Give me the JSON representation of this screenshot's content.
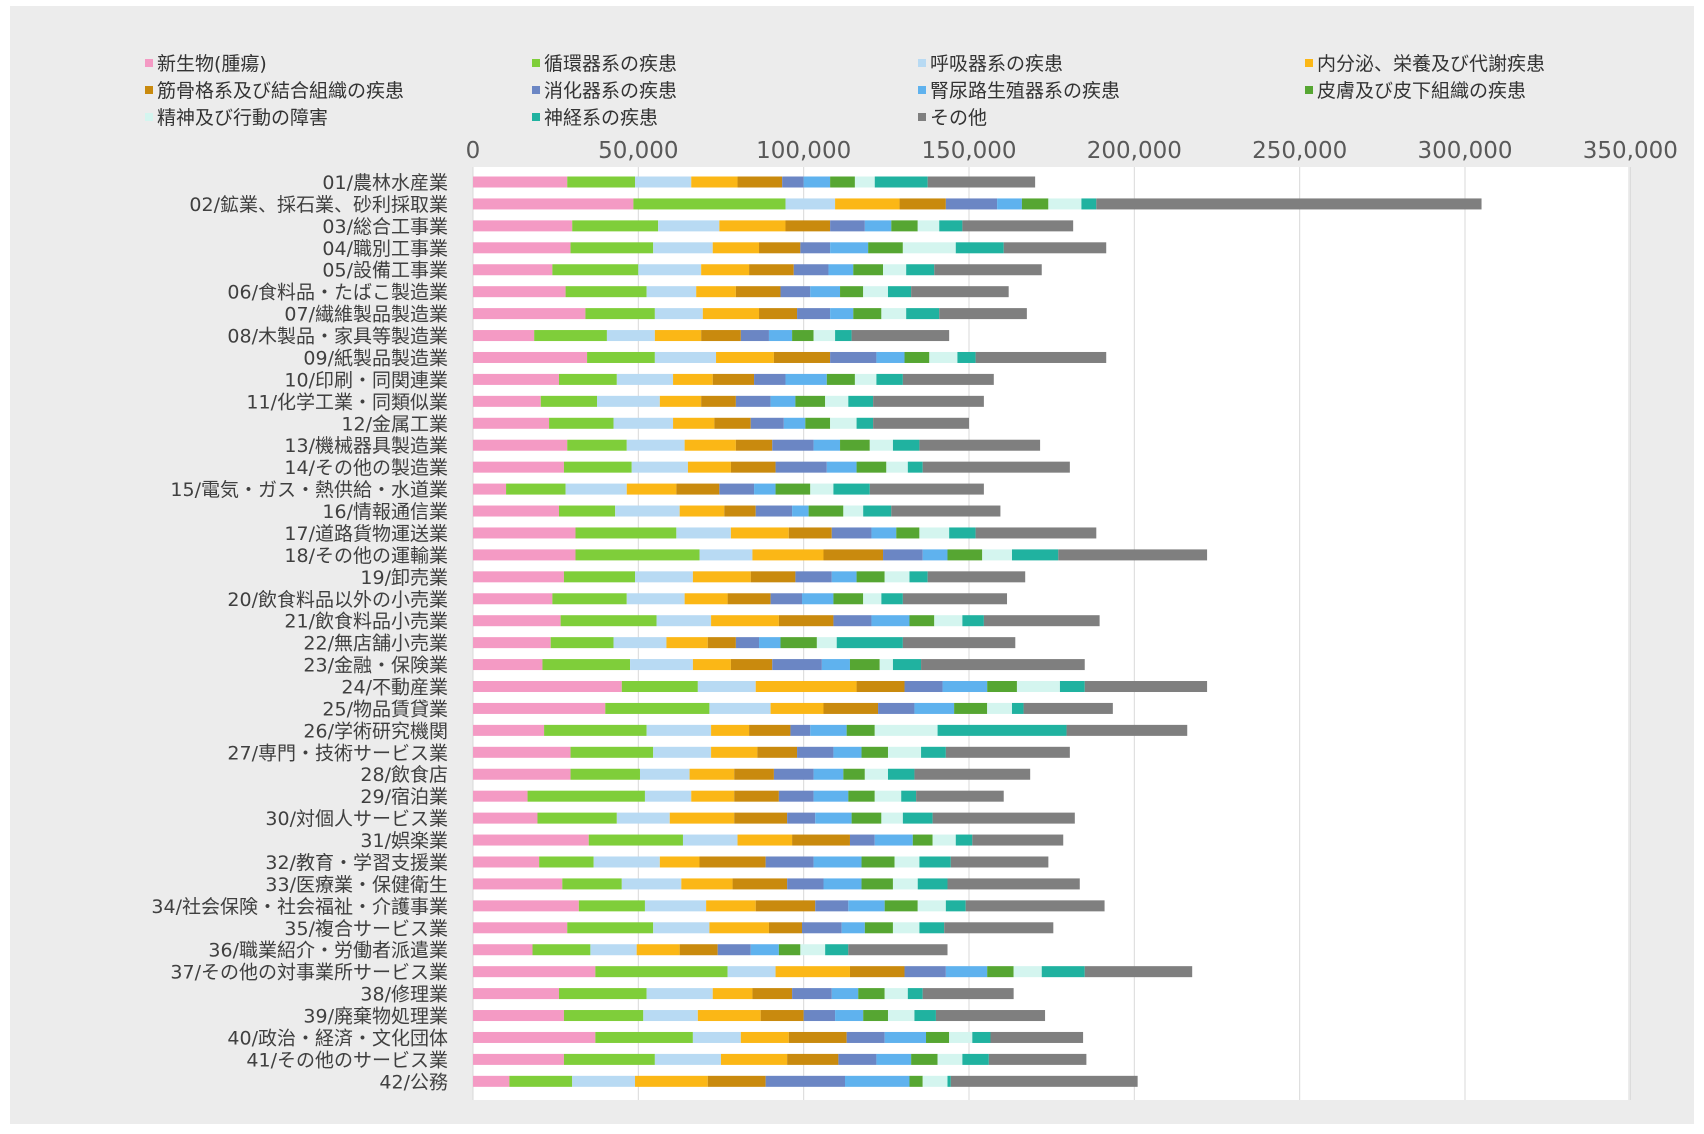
{
  "chart_data": {
    "type": "bar",
    "orientation": "horizontal",
    "stacked": true,
    "xlim": [
      0,
      350000
    ],
    "x_ticks": [
      "0",
      "50,000",
      "100,000",
      "150,000",
      "200,000",
      "250,000",
      "300,000",
      "350,000"
    ],
    "x_tick_values": [
      0,
      50000,
      100000,
      150000,
      200000,
      250000,
      300000,
      350000
    ],
    "grid": true,
    "legend_position": "top",
    "categories": [
      "01/農林水産業",
      "02/鉱業、採石業、砂利採取業",
      "03/総合工事業",
      "04/職別工事業",
      "05/設備工事業",
      "06/食料品・たばこ製造業",
      "07/繊維製品製造業",
      "08/木製品・家具等製造業",
      "09/紙製品製造業",
      "10/印刷・同関連業",
      "11/化学工業・同類似業",
      "12/金属工業",
      "13/機械器具製造業",
      "14/その他の製造業",
      "15/電気・ガス・熱供給・水道業",
      "16/情報通信業",
      "17/道路貨物運送業",
      "18/その他の運輸業",
      "19/卸売業",
      "20/飲食料品以外の小売業",
      "21/飲食料品小売業",
      "22/無店舗小売業",
      "23/金融・保険業",
      "24/不動産業",
      "25/物品賃貸業",
      "26/学術研究機関",
      "27/専門・技術サービス業",
      "28/飲食店",
      "29/宿泊業",
      "30/対個人サービス業",
      "31/娯楽業",
      "32/教育・学習支援業",
      "33/医療業・保健衛生",
      "34/社会保険・社会福祉・介護事業",
      "35/複合サービス業",
      "36/職業紹介・労働者派遣業",
      "37/その他の対事業所サービス業",
      "38/修理業",
      "39/廃棄物処理業",
      "40/政治・経済・文化団体",
      "41/その他のサービス業",
      "42/公務"
    ],
    "series": [
      {
        "name": "新生物(腫瘍)",
        "color": "#f49ac4",
        "values": [
          28500,
          48500,
          30000,
          29500,
          24000,
          28000,
          34000,
          18500,
          34500,
          26000,
          20500,
          23000,
          28500,
          27500,
          10000,
          26000,
          31000,
          31000,
          27500,
          24000,
          26500,
          23500,
          21000,
          45000,
          40000,
          21500,
          29500,
          29500,
          16500,
          19500,
          35000,
          20000,
          27000,
          32000,
          28500,
          18000,
          37000,
          26000,
          27500,
          37000,
          27500,
          11000
        ]
      },
      {
        "name": "循環器系の疾患",
        "color": "#7fce3a",
        "values": [
          20500,
          46000,
          26000,
          25000,
          26000,
          24500,
          21000,
          22000,
          20500,
          17500,
          17000,
          19500,
          18000,
          20500,
          18000,
          17000,
          30500,
          37500,
          21500,
          22500,
          29000,
          19000,
          26500,
          23000,
          31500,
          31000,
          25000,
          21000,
          35500,
          24000,
          28500,
          16500,
          18000,
          20000,
          26000,
          17500,
          40000,
          26500,
          24000,
          29500,
          27500,
          19000
        ]
      },
      {
        "name": "呼吸器系の疾患",
        "color": "#b8daf3",
        "values": [
          17000,
          15000,
          18500,
          18000,
          19000,
          15000,
          14500,
          14500,
          18500,
          17000,
          19000,
          18000,
          17500,
          17000,
          18500,
          19500,
          16500,
          16000,
          17500,
          17500,
          16500,
          16000,
          19000,
          17500,
          18500,
          19500,
          17500,
          15000,
          14000,
          16000,
          16500,
          20000,
          18000,
          18500,
          17000,
          14000,
          14500,
          20000,
          16500,
          14500,
          20000,
          19000
        ]
      },
      {
        "name": "内分泌、栄養及び代謝疾患",
        "color": "#fbb716",
        "values": [
          14000,
          19500,
          20000,
          14000,
          14500,
          12000,
          17000,
          14000,
          17500,
          12000,
          12500,
          12500,
          15500,
          13000,
          15000,
          13500,
          17500,
          21500,
          17500,
          13000,
          20500,
          12500,
          11500,
          30500,
          16000,
          11500,
          14000,
          13500,
          13000,
          19500,
          16500,
          12000,
          15500,
          15000,
          18000,
          13000,
          22500,
          12000,
          19000,
          14500,
          20000,
          22000
        ]
      },
      {
        "name": "筋骨格系及び結合組織の疾患",
        "color": "#c98a0e",
        "values": [
          13500,
          14000,
          13500,
          12500,
          13500,
          13500,
          11500,
          12000,
          17000,
          12500,
          10500,
          11000,
          11000,
          13500,
          13000,
          9500,
          13000,
          18000,
          13500,
          13000,
          16500,
          8500,
          12500,
          14500,
          16500,
          12500,
          12000,
          12000,
          13500,
          16000,
          17500,
          20000,
          16500,
          18000,
          10000,
          11500,
          16500,
          12000,
          13000,
          17500,
          15500,
          17500
        ]
      },
      {
        "name": "消化器系の疾患",
        "color": "#6b86c4",
        "values": [
          6500,
          15500,
          10500,
          9000,
          10500,
          9000,
          10000,
          8500,
          14000,
          9500,
          10500,
          10000,
          12500,
          15500,
          10500,
          11000,
          12000,
          12000,
          11000,
          9500,
          11500,
          7000,
          15000,
          11500,
          11000,
          6000,
          11000,
          12000,
          10500,
          8500,
          7500,
          14500,
          11000,
          10000,
          12000,
          10000,
          12500,
          12000,
          9500,
          11500,
          11500,
          24000
        ]
      },
      {
        "name": "腎尿路生殖器系の疾患",
        "color": "#5fb2ee",
        "values": [
          8000,
          7500,
          8000,
          11500,
          7500,
          9000,
          7000,
          7000,
          8500,
          12500,
          7500,
          6500,
          8000,
          9000,
          6500,
          5000,
          7500,
          7500,
          7500,
          9500,
          11500,
          6500,
          8500,
          13500,
          12000,
          11000,
          8500,
          9000,
          10500,
          11000,
          11500,
          14500,
          11500,
          11000,
          7000,
          8500,
          12500,
          8000,
          8500,
          12500,
          10500,
          19500
        ]
      },
      {
        "name": "皮膚及び皮下組織の疾患",
        "color": "#56a632",
        "values": [
          7500,
          8000,
          8000,
          10500,
          9000,
          7000,
          8500,
          6500,
          7500,
          8500,
          9000,
          7500,
          9000,
          9000,
          10500,
          10500,
          7000,
          10500,
          8500,
          9000,
          7500,
          11000,
          9000,
          9000,
          10000,
          8500,
          8000,
          6500,
          8000,
          9000,
          6000,
          10000,
          9500,
          10000,
          8500,
          6500,
          8000,
          8000,
          7500,
          7000,
          8000,
          4000
        ]
      },
      {
        "name": "精神及び行動の障害",
        "color": "#d4f5ef",
        "values": [
          6000,
          10000,
          6500,
          16000,
          7000,
          7500,
          7500,
          6500,
          8500,
          6500,
          7000,
          8000,
          7000,
          6500,
          7000,
          6000,
          9000,
          9000,
          7500,
          5500,
          8500,
          6000,
          4000,
          13000,
          7500,
          19000,
          10000,
          7000,
          8000,
          6500,
          7000,
          7500,
          7500,
          8500,
          8000,
          7500,
          8500,
          7000,
          8000,
          7000,
          7500,
          7500
        ]
      },
      {
        "name": "神経系の疾患",
        "color": "#20b2a0",
        "values": [
          16000,
          4500,
          7000,
          14500,
          8500,
          7000,
          10000,
          5000,
          5500,
          8000,
          7500,
          5000,
          8000,
          4500,
          11000,
          8500,
          8000,
          14000,
          5500,
          6500,
          6500,
          20000,
          8500,
          7500,
          3500,
          39000,
          7500,
          8000,
          4500,
          9000,
          5000,
          9500,
          9000,
          6000,
          7500,
          7000,
          13000,
          4500,
          6500,
          5500,
          8000,
          1000
        ]
      },
      {
        "name": "その他",
        "color": "#7f7f7f",
        "values": [
          32500,
          116500,
          33500,
          31000,
          32500,
          29500,
          26500,
          29500,
          39500,
          27500,
          33500,
          29000,
          36500,
          44500,
          34500,
          33000,
          36500,
          45000,
          29500,
          31500,
          35000,
          34000,
          49500,
          37000,
          27000,
          36500,
          37500,
          35000,
          26500,
          43000,
          27500,
          29500,
          40000,
          42000,
          33000,
          30000,
          32500,
          27500,
          33000,
          28000,
          29500,
          56500
        ]
      }
    ]
  }
}
